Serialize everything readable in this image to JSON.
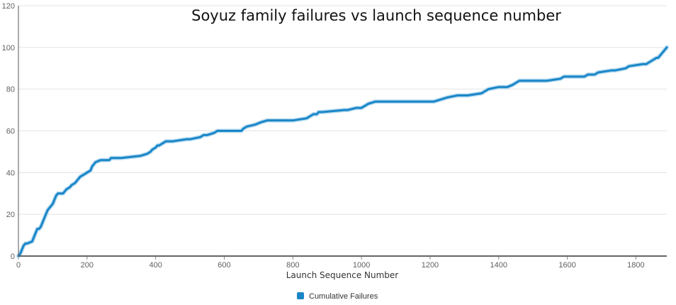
{
  "chart_data": {
    "type": "line",
    "title": "Soyuz family failures vs launch sequence number",
    "xlabel": "Launch Sequence Number",
    "ylabel": "",
    "xlim": [
      0,
      1890
    ],
    "ylim": [
      0,
      120
    ],
    "x_ticks": [
      0,
      200,
      400,
      600,
      800,
      1000,
      1200,
      1400,
      1600,
      1800
    ],
    "y_ticks": [
      0,
      20,
      40,
      60,
      80,
      100,
      120
    ],
    "grid": "horizontal",
    "legend_position": "bottom-center",
    "series": [
      {
        "name": "Cumulative Failures",
        "color": "#1a86c8",
        "x": [
          0,
          5,
          10,
          15,
          20,
          25,
          40,
          45,
          50,
          55,
          60,
          65,
          70,
          75,
          80,
          85,
          90,
          100,
          105,
          110,
          115,
          130,
          135,
          140,
          150,
          155,
          165,
          170,
          175,
          180,
          190,
          200,
          210,
          215,
          220,
          225,
          240,
          250,
          265,
          270,
          300,
          355,
          375,
          385,
          390,
          400,
          405,
          410,
          420,
          430,
          450,
          490,
          500,
          530,
          540,
          550,
          570,
          580,
          590,
          650,
          655,
          665,
          690,
          705,
          725,
          800,
          840,
          850,
          860,
          870,
          875,
          880,
          885,
          950,
          960,
          985,
          1000,
          1010,
          1020,
          1040,
          1210,
          1230,
          1250,
          1280,
          1310,
          1350,
          1360,
          1370,
          1400,
          1425,
          1440,
          1460,
          1520,
          1540,
          1580,
          1590,
          1650,
          1660,
          1680,
          1690,
          1730,
          1740,
          1770,
          1780,
          1820,
          1830,
          1840,
          1850,
          1860,
          1865,
          1870,
          1875,
          1880,
          1885,
          1890
        ],
        "y": [
          0,
          1,
          3,
          5,
          6,
          6,
          7,
          9,
          11,
          13,
          13,
          14,
          16,
          18,
          20,
          22,
          23,
          25,
          27,
          29,
          30,
          30,
          31,
          32,
          33,
          34,
          35,
          36,
          37,
          38,
          39,
          40,
          41,
          43,
          44,
          45,
          46,
          46,
          46,
          47,
          47,
          48,
          49,
          50,
          51,
          52,
          53,
          53,
          54,
          55,
          55,
          56,
          56,
          57,
          58,
          58,
          59,
          60,
          60,
          60,
          61,
          62,
          63,
          64,
          65,
          65,
          66,
          67,
          68,
          68,
          69,
          69,
          69,
          70,
          70,
          71,
          71,
          72,
          73,
          74,
          74,
          75,
          76,
          77,
          77,
          78,
          79,
          80,
          81,
          81,
          82,
          84,
          84,
          84,
          85,
          86,
          86,
          87,
          87,
          88,
          89,
          89,
          90,
          91,
          92,
          92,
          93,
          94,
          95,
          95,
          96,
          97,
          98,
          99,
          100
        ]
      }
    ]
  }
}
